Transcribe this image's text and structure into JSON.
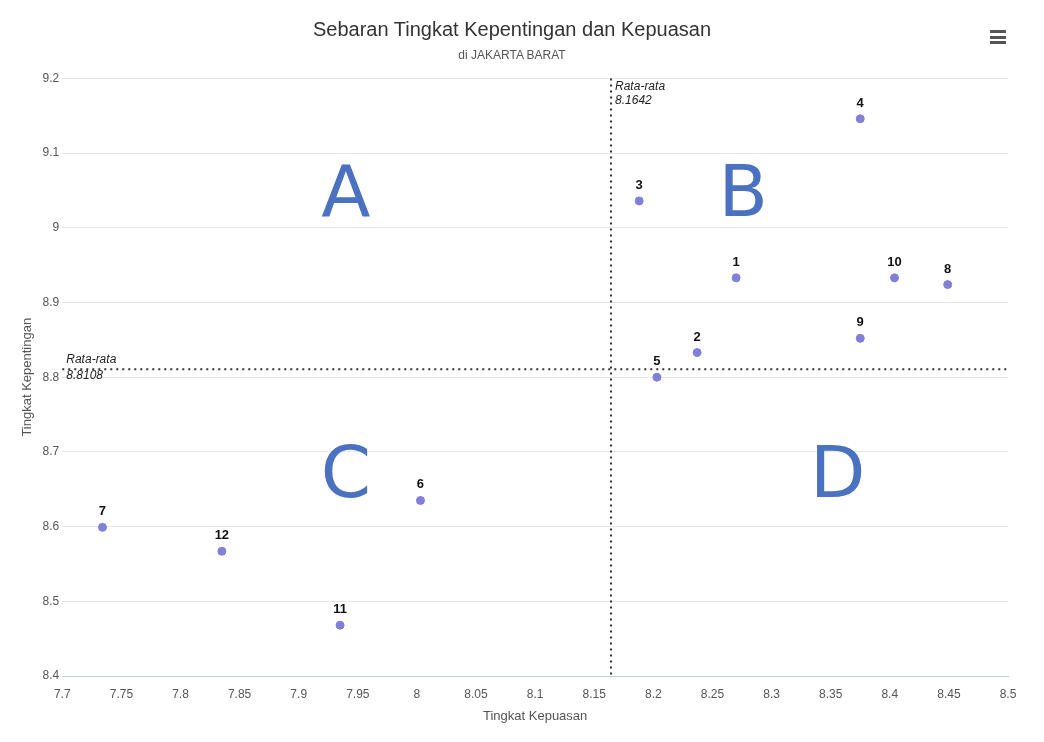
{
  "chart_data": {
    "type": "scatter",
    "title": "Sebaran Tingkat Kepentingan dan Kepuasan",
    "subtitle": "di JAKARTA BARAT",
    "xlabel": "Tingkat Kepuasan",
    "ylabel": "Tingkat Kepentingan",
    "x": [
      8.27,
      8.237,
      8.188,
      8.375,
      8.203,
      8.003,
      7.734,
      8.449,
      8.375,
      8.404,
      7.935,
      7.835
    ],
    "series": [
      {
        "color": "#8080d8",
        "values": [
          8.933,
          8.833,
          9.036,
          9.146,
          8.8,
          8.635,
          8.599,
          8.924,
          8.852,
          8.933,
          8.468,
          8.567
        ]
      }
    ],
    "xlim": [
      7.7,
      8.5
    ],
    "xticks": [
      7.7,
      7.75,
      7.8,
      7.85,
      7.9,
      7.95,
      8,
      8.05,
      8.1,
      8.15,
      8.2,
      8.25,
      8.3,
      8.35,
      8.4,
      8.45,
      8.5
    ],
    "ylim": [
      8.4,
      9.2
    ],
    "yticks": [
      8.4,
      8.5,
      8.6,
      8.7,
      8.8,
      8.9,
      9,
      9.1,
      9.2
    ],
    "grid": "y",
    "legend": false,
    "marker": "circle",
    "ref_lines": [
      {
        "axis": "x",
        "value": 8.1642,
        "label": "Rata-rata 8.1642",
        "color": "#333333",
        "line_style": "dotted"
      },
      {
        "axis": "y",
        "value": 8.8108,
        "label": "Rata-rata 8.8108",
        "color": "#333333",
        "line_style": "dotted"
      }
    ],
    "annotations": [
      {
        "text": "1",
        "x": 8.27,
        "y": 8.933
      },
      {
        "text": "2",
        "x": 8.237,
        "y": 8.833
      },
      {
        "text": "3",
        "x": 8.188,
        "y": 9.036
      },
      {
        "text": "4",
        "x": 8.375,
        "y": 9.146
      },
      {
        "text": "5",
        "x": 8.203,
        "y": 8.8
      },
      {
        "text": "6",
        "x": 8.003,
        "y": 8.635
      },
      {
        "text": "7",
        "x": 7.734,
        "y": 8.599
      },
      {
        "text": "8",
        "x": 8.449,
        "y": 8.924
      },
      {
        "text": "9",
        "x": 8.375,
        "y": 8.852
      },
      {
        "text": "10",
        "x": 8.404,
        "y": 8.933
      },
      {
        "text": "11",
        "x": 7.935,
        "y": 8.468
      },
      {
        "text": "12",
        "x": 7.835,
        "y": 8.567
      },
      "A",
      "B",
      "C",
      "D"
    ]
  }
}
